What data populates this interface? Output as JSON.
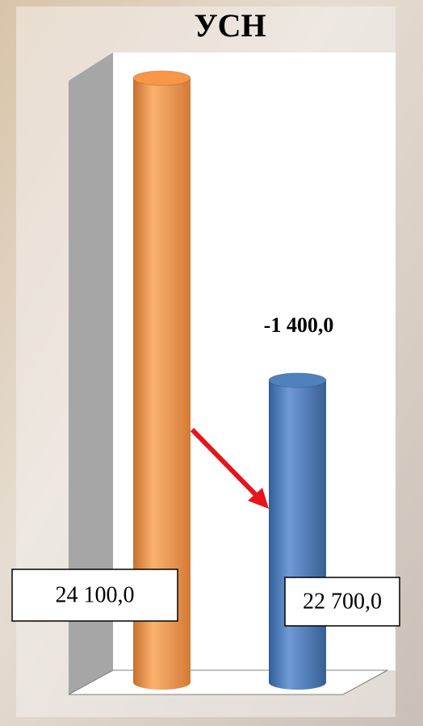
{
  "chart_data": {
    "type": "bar",
    "title": "УСН",
    "categories": [
      null,
      null
    ],
    "values": [
      24100,
      22700
    ],
    "value_labels": [
      "24 100,0",
      "22 700,0"
    ],
    "colors": [
      "#f79646",
      "#4f81bd"
    ],
    "annotation": "-1 400,0",
    "ylim": [
      21300,
      24200
    ]
  }
}
